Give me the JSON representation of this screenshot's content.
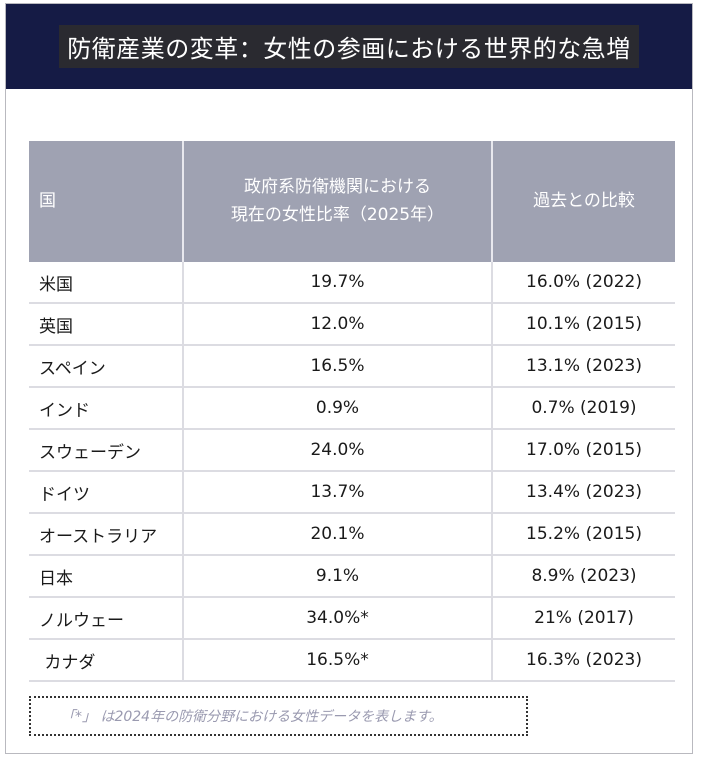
{
  "header": {
    "title": "防衛産業の変革：女性の参画における世界的な急増"
  },
  "chart_data": {
    "type": "table",
    "columns": [
      "国",
      "政府系防衛機関における\n現在の女性比率（2025年）",
      "過去との比較"
    ],
    "rows": [
      {
        "country": "米国",
        "current": "19.7%",
        "past": "16.0% (2022)"
      },
      {
        "country": "英国",
        "current": "12.0%",
        "past": "10.1% (2015)"
      },
      {
        "country": "スペイン",
        "current": "16.5%",
        "past": "13.1% (2023)"
      },
      {
        "country": "インド",
        "current": "0.9%",
        "past": "0.7% (2019)"
      },
      {
        "country": "スウェーデン",
        "current": "24.0%",
        "past": "17.0% (2015)"
      },
      {
        "country": "ドイツ",
        "current": "13.7%",
        "past": "13.4% (2023)"
      },
      {
        "country": "オーストラリア",
        "current": "20.1%",
        "past": "15.2% (2015)"
      },
      {
        "country": "日本",
        "current": "9.1%",
        "past": "8.9% (2023)"
      },
      {
        "country": "ノルウェー",
        "current": "34.0%*",
        "past": "21% (2017)"
      },
      {
        "country": " カナダ",
        "current": "16.5%*",
        "past": "16.3% (2023)"
      }
    ]
  },
  "footnote": "「*」 は2024年の防衛分野における女性データを表します。"
}
